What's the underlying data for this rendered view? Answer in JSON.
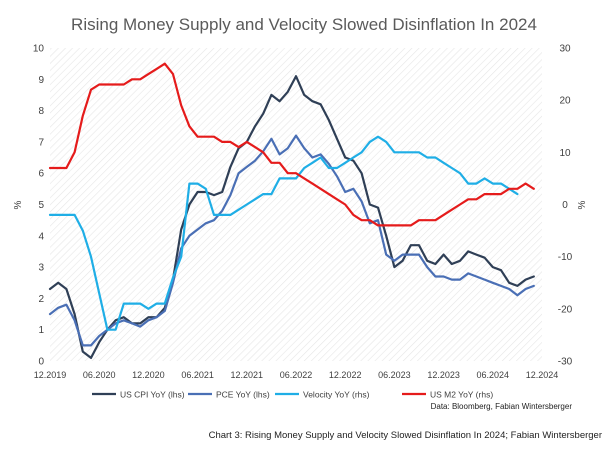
{
  "chart_data": {
    "type": "line",
    "title": "Rising Money Supply and Velocity Slowed Disinflation In 2024",
    "ylabel_left": "%",
    "ylabel_right": "%",
    "ylim_left": [
      0,
      10
    ],
    "ylim_right": [
      -30,
      30
    ],
    "yticks_left": [
      "0",
      "1",
      "2",
      "3",
      "4",
      "5",
      "6",
      "7",
      "8",
      "9",
      "10"
    ],
    "yticks_right": [
      "-30",
      "-20",
      "-10",
      "0",
      "10",
      "20",
      "30"
    ],
    "xlim": [
      "2019-12",
      "2024-12"
    ],
    "xticks": [
      "12.2019",
      "06.2020",
      "12.2020",
      "06.2021",
      "12.2021",
      "06.2022",
      "12.2022",
      "06.2023",
      "12.2023",
      "06.2024",
      "12.2024"
    ],
    "grid": "diagonal-hatch",
    "legend_placement": "bottom",
    "source": "Data: Bloomberg, Fabian Wintersberger",
    "series": [
      {
        "name": "US CPI YoY (lhs)",
        "axis": "left",
        "color": "#2f3f56",
        "x": [
          "2019-12",
          "2020-01",
          "2020-02",
          "2020-03",
          "2020-04",
          "2020-05",
          "2020-06",
          "2020-07",
          "2020-08",
          "2020-09",
          "2020-10",
          "2020-11",
          "2020-12",
          "2021-01",
          "2021-02",
          "2021-03",
          "2021-04",
          "2021-05",
          "2021-06",
          "2021-07",
          "2021-08",
          "2021-09",
          "2021-10",
          "2021-11",
          "2021-12",
          "2022-01",
          "2022-02",
          "2022-03",
          "2022-04",
          "2022-05",
          "2022-06",
          "2022-07",
          "2022-08",
          "2022-09",
          "2022-10",
          "2022-11",
          "2022-12",
          "2023-01",
          "2023-02",
          "2023-03",
          "2023-04",
          "2023-05",
          "2023-06",
          "2023-07",
          "2023-08",
          "2023-09",
          "2023-10",
          "2023-11",
          "2023-12",
          "2024-01",
          "2024-02",
          "2024-03",
          "2024-04",
          "2024-05",
          "2024-06",
          "2024-07",
          "2024-08",
          "2024-09",
          "2024-10",
          "2024-11"
        ],
        "values": [
          2.3,
          2.5,
          2.3,
          1.5,
          0.3,
          0.1,
          0.6,
          1.0,
          1.3,
          1.4,
          1.2,
          1.2,
          1.4,
          1.4,
          1.7,
          2.6,
          4.2,
          5.0,
          5.4,
          5.4,
          5.3,
          5.4,
          6.2,
          6.8,
          7.0,
          7.5,
          7.9,
          8.5,
          8.3,
          8.6,
          9.1,
          8.5,
          8.3,
          8.2,
          7.7,
          7.1,
          6.5,
          6.4,
          6.0,
          5.0,
          4.9,
          4.0,
          3.0,
          3.2,
          3.7,
          3.7,
          3.2,
          3.1,
          3.4,
          3.1,
          3.2,
          3.5,
          3.4,
          3.3,
          3.0,
          2.9,
          2.5,
          2.4,
          2.6,
          2.7
        ]
      },
      {
        "name": "PCE YoY (lhs)",
        "axis": "left",
        "color": "#4a6fb5",
        "x": [
          "2019-12",
          "2020-01",
          "2020-02",
          "2020-03",
          "2020-04",
          "2020-05",
          "2020-06",
          "2020-07",
          "2020-08",
          "2020-09",
          "2020-10",
          "2020-11",
          "2020-12",
          "2021-01",
          "2021-02",
          "2021-03",
          "2021-04",
          "2021-05",
          "2021-06",
          "2021-07",
          "2021-08",
          "2021-09",
          "2021-10",
          "2021-11",
          "2021-12",
          "2022-01",
          "2022-02",
          "2022-03",
          "2022-04",
          "2022-05",
          "2022-06",
          "2022-07",
          "2022-08",
          "2022-09",
          "2022-10",
          "2022-11",
          "2022-12",
          "2023-01",
          "2023-02",
          "2023-03",
          "2023-04",
          "2023-05",
          "2023-06",
          "2023-07",
          "2023-08",
          "2023-09",
          "2023-10",
          "2023-11",
          "2023-12",
          "2024-01",
          "2024-02",
          "2024-03",
          "2024-04",
          "2024-05",
          "2024-06",
          "2024-07",
          "2024-08",
          "2024-09",
          "2024-10",
          "2024-11"
        ],
        "values": [
          1.5,
          1.7,
          1.8,
          1.3,
          0.5,
          0.5,
          0.8,
          1.0,
          1.2,
          1.3,
          1.2,
          1.1,
          1.3,
          1.4,
          1.6,
          2.5,
          3.6,
          4.0,
          4.2,
          4.4,
          4.5,
          4.8,
          5.3,
          6.0,
          6.2,
          6.4,
          6.7,
          7.1,
          6.6,
          6.8,
          7.2,
          6.8,
          6.5,
          6.6,
          6.3,
          5.9,
          5.4,
          5.5,
          5.1,
          4.4,
          4.5,
          3.4,
          3.2,
          3.4,
          3.4,
          3.4,
          3.0,
          2.7,
          2.7,
          2.6,
          2.6,
          2.8,
          2.7,
          2.6,
          2.5,
          2.4,
          2.3,
          2.1,
          2.3,
          2.4
        ]
      },
      {
        "name": "Velocity YoY (rhs)",
        "axis": "right",
        "color": "#1faee6",
        "x": [
          "2019-12",
          "2020-03",
          "2020-04",
          "2020-05",
          "2020-06",
          "2020-07",
          "2020-08",
          "2020-09",
          "2020-10",
          "2020-11",
          "2020-12",
          "2021-01",
          "2021-02",
          "2021-03",
          "2021-04",
          "2021-05",
          "2021-06",
          "2021-07",
          "2021-08",
          "2021-09",
          "2021-10",
          "2021-11",
          "2021-12",
          "2022-01",
          "2022-02",
          "2022-03",
          "2022-04",
          "2022-05",
          "2022-06",
          "2022-07",
          "2022-08",
          "2022-09",
          "2022-10",
          "2022-11",
          "2022-12",
          "2023-01",
          "2023-02",
          "2023-03",
          "2023-04",
          "2023-05",
          "2023-06",
          "2023-07",
          "2023-08",
          "2023-09",
          "2023-10",
          "2023-11",
          "2023-12",
          "2024-01",
          "2024-02",
          "2024-03",
          "2024-04",
          "2024-05",
          "2024-06",
          "2024-07",
          "2024-08",
          "2024-09"
        ],
        "values": [
          -2,
          -2,
          -5,
          -10,
          -17,
          -24,
          -24,
          -19,
          -19,
          -19,
          -20,
          -19,
          -19,
          -14,
          -10,
          4,
          4,
          3,
          -2,
          -2,
          -2,
          -1,
          0,
          1,
          2,
          2,
          5,
          5,
          5,
          7,
          8,
          9,
          7,
          7,
          8,
          9,
          10,
          12,
          13,
          12,
          10,
          10,
          10,
          10,
          9,
          9,
          8,
          7,
          6,
          4,
          4,
          5,
          4,
          4,
          3,
          2
        ]
      },
      {
        "name": "US M2 YoY (rhs)",
        "axis": "right",
        "color": "#e51b1b",
        "x": [
          "2019-12",
          "2020-01",
          "2020-02",
          "2020-03",
          "2020-04",
          "2020-05",
          "2020-06",
          "2020-07",
          "2020-08",
          "2020-09",
          "2020-10",
          "2020-11",
          "2020-12",
          "2021-01",
          "2021-02",
          "2021-03",
          "2021-04",
          "2021-05",
          "2021-06",
          "2021-07",
          "2021-08",
          "2021-09",
          "2021-10",
          "2021-11",
          "2021-12",
          "2022-01",
          "2022-02",
          "2022-03",
          "2022-04",
          "2022-05",
          "2022-06",
          "2022-07",
          "2022-08",
          "2022-09",
          "2022-10",
          "2022-11",
          "2022-12",
          "2023-01",
          "2023-02",
          "2023-03",
          "2023-04",
          "2023-05",
          "2023-06",
          "2023-07",
          "2023-08",
          "2023-09",
          "2023-10",
          "2023-11",
          "2023-12",
          "2024-01",
          "2024-02",
          "2024-03",
          "2024-04",
          "2024-05",
          "2024-06",
          "2024-07",
          "2024-08",
          "2024-09",
          "2024-10",
          "2024-11"
        ],
        "values": [
          7,
          7,
          7,
          10,
          17,
          22,
          23,
          23,
          23,
          23,
          24,
          24,
          25,
          26,
          27,
          25,
          19,
          15,
          13,
          13,
          13,
          12,
          12,
          11,
          12,
          11,
          10,
          8,
          8,
          6,
          6,
          5,
          4,
          3,
          2,
          1,
          0,
          -2,
          -3,
          -3,
          -4,
          -4,
          -4,
          -4,
          -4,
          -3,
          -3,
          -3,
          -2,
          -1,
          0,
          1,
          1,
          2,
          2,
          2,
          3,
          3,
          4,
          3
        ]
      }
    ]
  },
  "caption": "Chart 3: Rising Money Supply and Velocity Slowed Disinflation In 2024; Fabian Wintersberger"
}
